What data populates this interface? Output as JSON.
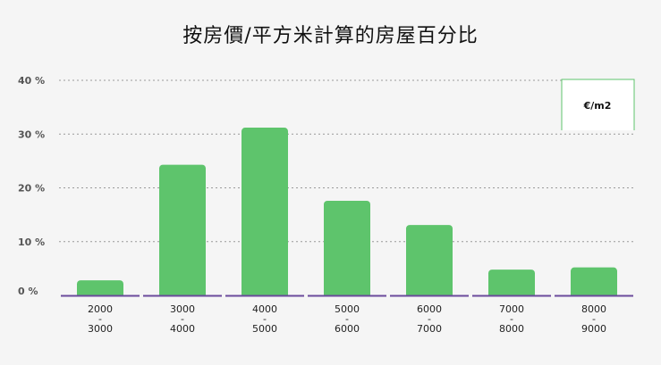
{
  "chart_data": {
    "type": "bar",
    "title": "按房價/平方米計算的房屋百分比",
    "categories": [
      [
        "2000",
        "-",
        "3000"
      ],
      [
        "3000",
        "-",
        "4000"
      ],
      [
        "4000",
        "-",
        "5000"
      ],
      [
        "5000",
        "-",
        "6000"
      ],
      [
        "6000",
        "-",
        "7000"
      ],
      [
        "7000",
        "-",
        "8000"
      ],
      [
        "8000",
        "-",
        "9000"
      ]
    ],
    "values": [
      2.8,
      24.3,
      31.2,
      17.6,
      13.1,
      4.8,
      5.2
    ],
    "yticks": [
      0,
      10,
      20,
      30,
      40
    ],
    "ytick_labels": [
      "0 %",
      "10 %",
      "20 %",
      "30 %",
      "40 %"
    ],
    "ylim": [
      0,
      40
    ],
    "grid": true,
    "legend": {
      "label": "€/m2",
      "placement": "top-right"
    },
    "colors": {
      "bar": "#5ec46c",
      "baseline": "#6a4a9c",
      "grid": "#9a9a9a",
      "legend_border": "#5ec46c"
    }
  }
}
